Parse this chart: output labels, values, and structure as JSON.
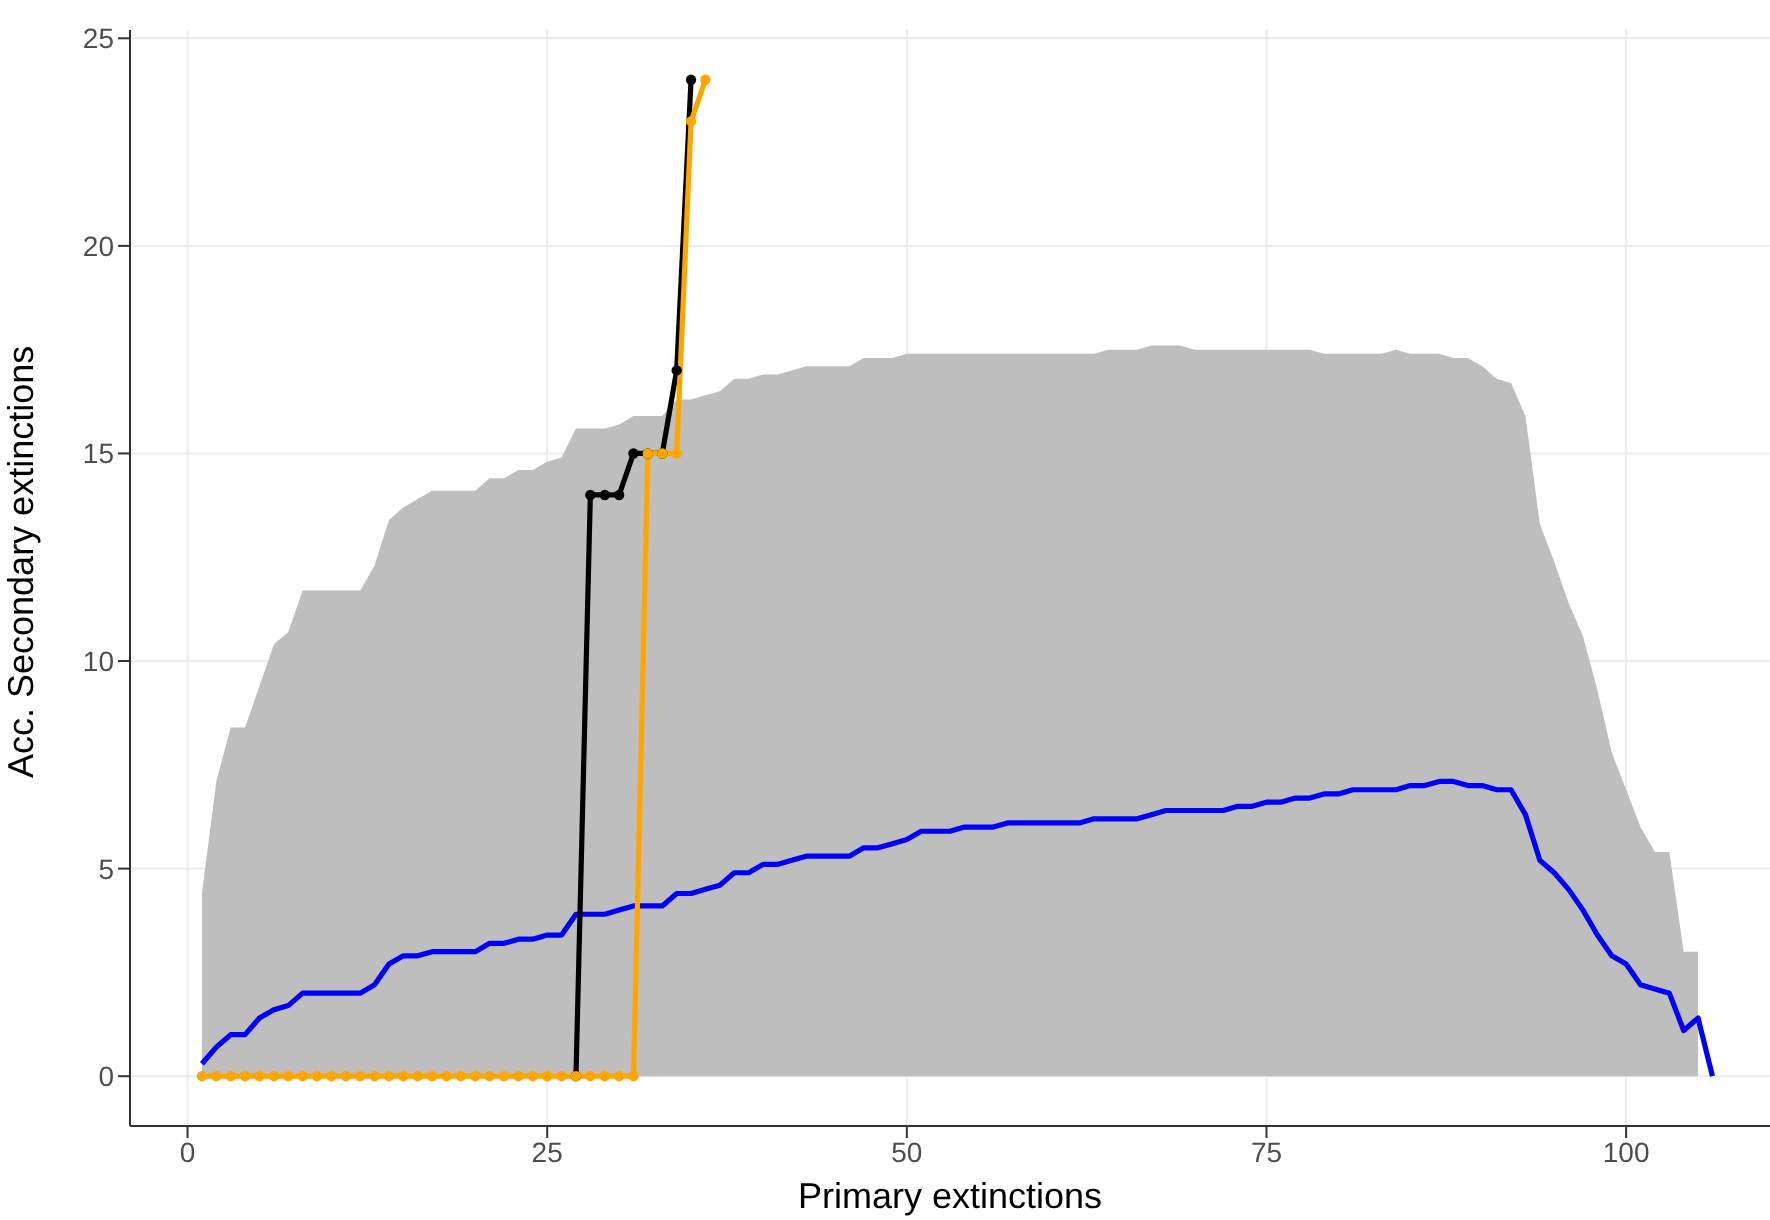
{
  "chart_data": {
    "type": "line",
    "xlabel": "Primary extinctions",
    "ylabel": "Acc. Secondary extinctions",
    "xlim": [
      -4,
      110
    ],
    "ylim": [
      -1.2,
      25.2
    ],
    "xticks": [
      0,
      25,
      50,
      75,
      100
    ],
    "yticks": [
      0,
      5,
      10,
      15,
      20,
      25
    ],
    "grid": true,
    "line_style": "solid",
    "series": [
      {
        "type": "area",
        "color": "#bebebe",
        "x": [
          1,
          2,
          3,
          4,
          5,
          6,
          7,
          8,
          9,
          10,
          11,
          12,
          13,
          14,
          15,
          16,
          17,
          18,
          19,
          20,
          21,
          22,
          23,
          24,
          25,
          26,
          27,
          28,
          29,
          30,
          31,
          32,
          33,
          34,
          35,
          36,
          37,
          38,
          39,
          40,
          41,
          42,
          43,
          44,
          45,
          46,
          47,
          48,
          49,
          50,
          51,
          52,
          53,
          54,
          55,
          56,
          57,
          58,
          59,
          60,
          61,
          62,
          63,
          64,
          65,
          66,
          67,
          68,
          69,
          70,
          71,
          72,
          73,
          74,
          75,
          76,
          77,
          78,
          79,
          80,
          81,
          82,
          83,
          84,
          85,
          86,
          87,
          88,
          89,
          90,
          91,
          92,
          93,
          94,
          95,
          96,
          97,
          98,
          99,
          100,
          101,
          102,
          103,
          104,
          105
        ],
        "values": [
          4.4,
          7.1,
          8.4,
          8.4,
          9.4,
          10.4,
          10.7,
          11.7,
          11.7,
          11.7,
          11.7,
          11.7,
          12.3,
          13.4,
          13.7,
          13.9,
          14.1,
          14.1,
          14.1,
          14.1,
          14.4,
          14.4,
          14.6,
          14.6,
          14.8,
          14.9,
          15.6,
          15.6,
          15.6,
          15.7,
          15.9,
          15.9,
          15.9,
          16.3,
          16.3,
          16.4,
          16.5,
          16.8,
          16.8,
          16.9,
          16.9,
          17.0,
          17.1,
          17.1,
          17.1,
          17.1,
          17.3,
          17.3,
          17.3,
          17.4,
          17.4,
          17.4,
          17.4,
          17.4,
          17.4,
          17.4,
          17.4,
          17.4,
          17.4,
          17.4,
          17.4,
          17.4,
          17.4,
          17.5,
          17.5,
          17.5,
          17.6,
          17.6,
          17.6,
          17.5,
          17.5,
          17.5,
          17.5,
          17.5,
          17.5,
          17.5,
          17.5,
          17.5,
          17.4,
          17.4,
          17.4,
          17.4,
          17.4,
          17.5,
          17.4,
          17.4,
          17.4,
          17.3,
          17.3,
          17.1,
          16.8,
          16.7,
          15.9,
          13.3,
          12.4,
          11.4,
          10.6,
          9.3,
          7.8,
          6.9,
          6.0,
          5.4,
          5.4,
          3.0,
          3.0
        ]
      },
      {
        "color": "#0000ff",
        "marker": "none",
        "x": [
          1,
          2,
          3,
          4,
          5,
          6,
          7,
          8,
          9,
          10,
          11,
          12,
          13,
          14,
          15,
          16,
          17,
          18,
          19,
          20,
          21,
          22,
          23,
          24,
          25,
          26,
          27,
          28,
          29,
          30,
          31,
          32,
          33,
          34,
          35,
          36,
          37,
          38,
          39,
          40,
          41,
          42,
          43,
          44,
          45,
          46,
          47,
          48,
          49,
          50,
          51,
          52,
          53,
          54,
          55,
          56,
          57,
          58,
          59,
          60,
          61,
          62,
          63,
          64,
          65,
          66,
          67,
          68,
          69,
          70,
          71,
          72,
          73,
          74,
          75,
          76,
          77,
          78,
          79,
          80,
          81,
          82,
          83,
          84,
          85,
          86,
          87,
          88,
          89,
          90,
          91,
          92,
          93,
          94,
          95,
          96,
          97,
          98,
          99,
          100,
          101,
          102,
          103,
          104,
          105,
          106
        ],
        "values": [
          0.3,
          0.7,
          1.0,
          1.0,
          1.4,
          1.6,
          1.7,
          2.0,
          2.0,
          2.0,
          2.0,
          2.0,
          2.2,
          2.7,
          2.9,
          2.9,
          3.0,
          3.0,
          3.0,
          3.0,
          3.2,
          3.2,
          3.3,
          3.3,
          3.4,
          3.4,
          3.9,
          3.9,
          3.9,
          4.0,
          4.1,
          4.1,
          4.1,
          4.4,
          4.4,
          4.5,
          4.6,
          4.9,
          4.9,
          5.1,
          5.1,
          5.2,
          5.3,
          5.3,
          5.3,
          5.3,
          5.5,
          5.5,
          5.6,
          5.7,
          5.9,
          5.9,
          5.9,
          6.0,
          6.0,
          6.0,
          6.1,
          6.1,
          6.1,
          6.1,
          6.1,
          6.1,
          6.2,
          6.2,
          6.2,
          6.2,
          6.3,
          6.4,
          6.4,
          6.4,
          6.4,
          6.4,
          6.5,
          6.5,
          6.6,
          6.6,
          6.7,
          6.7,
          6.8,
          6.8,
          6.9,
          6.9,
          6.9,
          6.9,
          7.0,
          7.0,
          7.1,
          7.1,
          7.0,
          7.0,
          6.9,
          6.9,
          6.3,
          5.2,
          4.9,
          4.5,
          4.0,
          3.4,
          2.9,
          2.7,
          2.2,
          2.1,
          2.0,
          1.1,
          1.4,
          0
        ]
      },
      {
        "color": "#000000",
        "marker": "circle",
        "x": [
          27,
          28,
          29,
          30,
          31,
          32,
          33,
          34,
          35
        ],
        "values": [
          0,
          14,
          14,
          14,
          15,
          15,
          15,
          17,
          24
        ]
      },
      {
        "color": "#ffa500",
        "marker": "circle",
        "x": [
          1,
          2,
          3,
          4,
          5,
          6,
          7,
          8,
          9,
          10,
          11,
          12,
          13,
          14,
          15,
          16,
          17,
          18,
          19,
          20,
          21,
          22,
          23,
          24,
          25,
          26,
          27,
          28,
          29,
          30,
          31,
          32,
          33,
          34,
          35,
          36
        ],
        "values": [
          0,
          0,
          0,
          0,
          0,
          0,
          0,
          0,
          0,
          0,
          0,
          0,
          0,
          0,
          0,
          0,
          0,
          0,
          0,
          0,
          0,
          0,
          0,
          0,
          0,
          0,
          0,
          0,
          0,
          0,
          0,
          15,
          15,
          15,
          23,
          24
        ]
      }
    ]
  }
}
